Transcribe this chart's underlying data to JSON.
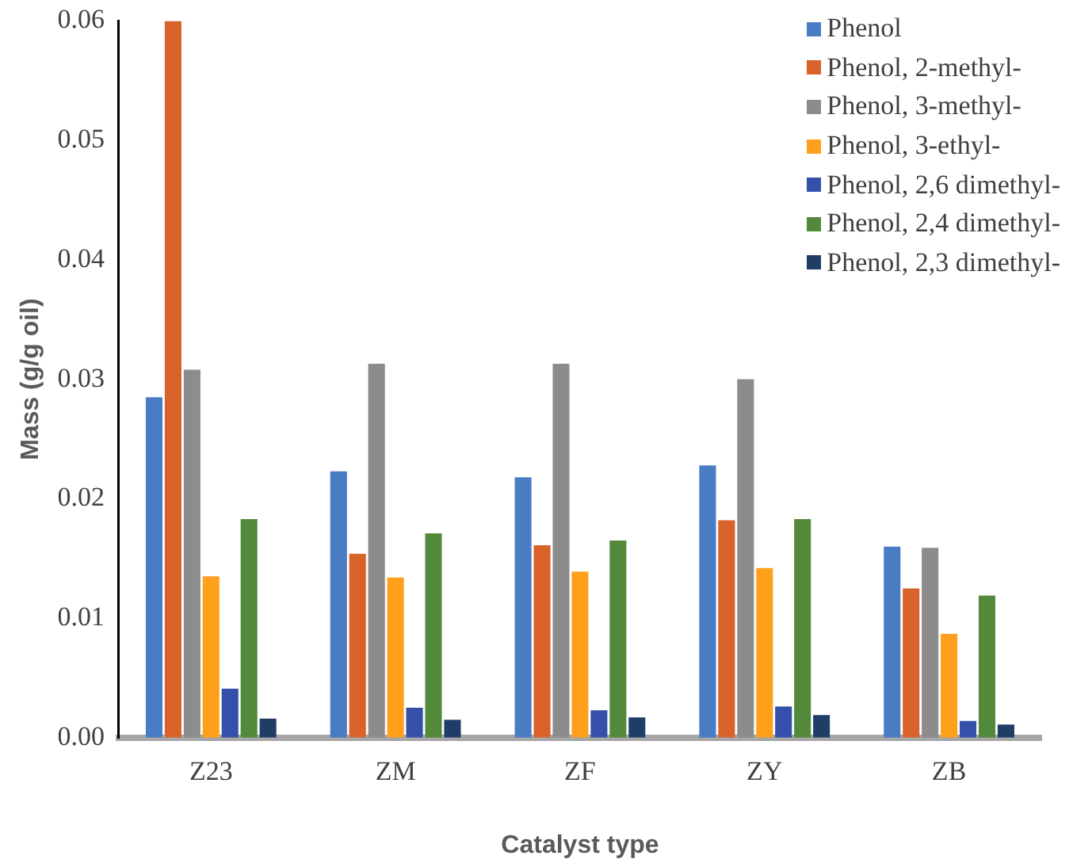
{
  "chart_data": {
    "type": "bar",
    "xlabel": "Catalyst type",
    "ylabel": "Mass (g/g oil)",
    "categories": [
      "Z23",
      "ZM",
      "ZF",
      "ZY",
      "ZB"
    ],
    "series": [
      {
        "name": "Phenol",
        "color": "#4a7cc4",
        "values": [
          0.0285,
          0.0223,
          0.0218,
          0.0228,
          0.016
        ]
      },
      {
        "name": "Phenol, 2-methyl-",
        "color": "#d9622b",
        "values": [
          0.06,
          0.0154,
          0.0161,
          0.0182,
          0.0125
        ]
      },
      {
        "name": "Phenol, 3-methyl-",
        "color": "#8c8c8c",
        "values": [
          0.0308,
          0.0313,
          0.0313,
          0.03,
          0.0159
        ]
      },
      {
        "name": "Phenol, 3-ethyl-",
        "color": "#ffa01c",
        "values": [
          0.0135,
          0.0134,
          0.0139,
          0.0142,
          0.0087
        ]
      },
      {
        "name": "Phenol, 2,6 dimethyl-",
        "color": "#3550a8",
        "values": [
          0.0041,
          0.0025,
          0.0023,
          0.0026,
          0.0014
        ]
      },
      {
        "name": "Phenol, 2,4 dimethyl-",
        "color": "#53893a",
        "values": [
          0.0183,
          0.0171,
          0.0165,
          0.0183,
          0.0119
        ]
      },
      {
        "name": "Phenol, 2,3 dimethyl-",
        "color": "#1f3d66",
        "values": [
          0.0016,
          0.0015,
          0.0017,
          0.0019,
          0.0011
        ]
      }
    ],
    "ylim": [
      0,
      0.06
    ],
    "yticks": [
      {
        "value": 0,
        "label": "0.00"
      },
      {
        "value": 0.01,
        "label": "0.01"
      },
      {
        "value": 0.02,
        "label": "0.02"
      },
      {
        "value": 0.03,
        "label": "0.03"
      },
      {
        "value": 0.04,
        "label": "0.04"
      },
      {
        "value": 0.05,
        "label": "0.05"
      },
      {
        "value": 0.06,
        "label": "0.06"
      }
    ],
    "grid": false,
    "legend": "top right"
  }
}
